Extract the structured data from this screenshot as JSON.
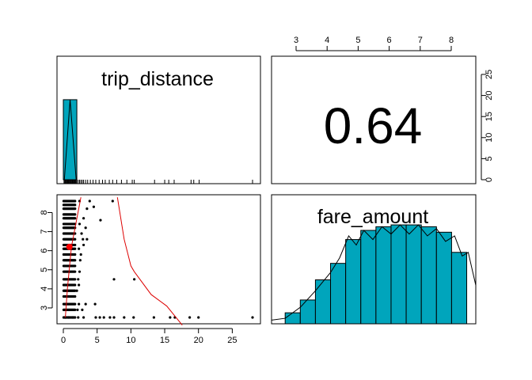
{
  "colors": {
    "bar_fill": "#00A5BC",
    "points": "#000000",
    "loess": "#DD0000",
    "mean_point": "#FF0000",
    "density": "#000000"
  },
  "chart_data": {
    "type": "scatter-matrix",
    "variables": [
      "trip_distance",
      "fare_amount"
    ],
    "correlation": {
      "label": "0.64",
      "value": 0.64
    },
    "axes": {
      "trip_distance_ticks": [
        "0",
        "5",
        "10",
        "15",
        "20",
        "25"
      ],
      "fare_amount_ticks": [
        "3",
        "4",
        "5",
        "6",
        "7",
        "8"
      ],
      "histogram_count_ticks": [
        "0",
        "5",
        "10",
        "15",
        "20",
        "25"
      ],
      "trip_distance_range": [
        0,
        28
      ],
      "fare_amount_range": [
        2.5,
        8.8
      ]
    },
    "trip_distance_histogram": {
      "bins": [
        [
          0,
          2,
          19
        ]
      ],
      "density_peak_x": 1.0,
      "rug": [
        0.1,
        0.2,
        0.3,
        0.4,
        0.5,
        0.6,
        0.7,
        0.8,
        0.9,
        1.0,
        1.1,
        1.2,
        1.3,
        1.4,
        1.5,
        1.6,
        1.7,
        1.8,
        1.9,
        2.0,
        2.2,
        2.4,
        2.6,
        2.8,
        3.0,
        3.3,
        3.6,
        4.0,
        4.4,
        4.8,
        5.3,
        5.8,
        6.2,
        6.8,
        7.3,
        7.9,
        8.6,
        9.4,
        10.2,
        10.5,
        13.5,
        15.0,
        15.6,
        16.4,
        18.9,
        19.3,
        20.1,
        28.0
      ],
      "count_ylim": [
        0,
        28
      ]
    },
    "fare_amount_histogram": {
      "bins": [
        [
          2.5,
          3.0,
          0.6
        ],
        [
          3.0,
          3.5,
          1.3
        ],
        [
          3.5,
          4.0,
          2.4
        ],
        [
          4.0,
          4.5,
          3.3
        ],
        [
          4.5,
          5.0,
          4.6
        ],
        [
          5.0,
          5.5,
          5.1
        ],
        [
          5.5,
          6.0,
          5.3
        ],
        [
          6.0,
          6.5,
          5.4
        ],
        [
          6.5,
          7.0,
          5.4
        ],
        [
          7.0,
          7.5,
          5.3
        ],
        [
          7.5,
          8.0,
          5.0
        ],
        [
          8.0,
          8.5,
          3.9
        ]
      ],
      "density": [
        [
          2.05,
          0.2
        ],
        [
          2.5,
          0.3
        ],
        [
          3.0,
          0.9
        ],
        [
          3.5,
          1.8
        ],
        [
          4.0,
          2.8
        ],
        [
          4.3,
          3.6
        ],
        [
          4.6,
          4.8
        ],
        [
          4.85,
          4.3
        ],
        [
          5.1,
          5.1
        ],
        [
          5.4,
          4.6
        ],
        [
          5.7,
          5.3
        ],
        [
          6.0,
          4.9
        ],
        [
          6.3,
          5.4
        ],
        [
          6.6,
          4.9
        ],
        [
          6.9,
          5.4
        ],
        [
          7.2,
          4.8
        ],
        [
          7.5,
          5.2
        ],
        [
          7.8,
          4.5
        ],
        [
          8.1,
          4.8
        ],
        [
          8.35,
          3.7
        ],
        [
          8.55,
          3.9
        ],
        [
          8.8,
          2.1
        ]
      ],
      "ylim": [
        0,
        6
      ]
    },
    "scatter": {
      "xlabel": "",
      "ylabel": "",
      "y_levels": [
        2.5,
        2.9,
        3.2,
        3.6,
        3.9,
        4.2,
        4.5,
        4.9,
        5.2,
        5.5,
        5.8,
        6.1,
        6.3,
        6.6,
        6.9,
        7.2,
        7.4,
        7.7,
        7.9,
        8.2,
        8.4,
        8.6
      ],
      "extra_points": [
        [
          0.3,
          2.5
        ],
        [
          0.8,
          2.5
        ],
        [
          1.4,
          2.5
        ],
        [
          2.2,
          2.5
        ],
        [
          3.0,
          2.5
        ],
        [
          4.8,
          2.5
        ],
        [
          5.4,
          2.5
        ],
        [
          6.0,
          2.5
        ],
        [
          6.9,
          2.5
        ],
        [
          7.5,
          2.5
        ],
        [
          9.0,
          2.5
        ],
        [
          10.4,
          2.5
        ],
        [
          13.4,
          2.5
        ],
        [
          15.8,
          2.5
        ],
        [
          16.5,
          2.5
        ],
        [
          18.7,
          2.5
        ],
        [
          20.0,
          2.5
        ],
        [
          28.0,
          2.5
        ],
        [
          2.1,
          2.9
        ],
        [
          2.8,
          2.9
        ],
        [
          2.3,
          3.2
        ],
        [
          3.3,
          3.2
        ],
        [
          4.7,
          3.2
        ],
        [
          2.0,
          3.9
        ],
        [
          2.3,
          4.2
        ],
        [
          2.2,
          4.5
        ],
        [
          7.5,
          4.5
        ],
        [
          10.5,
          4.5
        ],
        [
          2.4,
          4.9
        ],
        [
          2.5,
          5.5
        ],
        [
          2.6,
          5.8
        ],
        [
          2.3,
          6.1
        ],
        [
          3.0,
          6.3
        ],
        [
          2.9,
          6.6
        ],
        [
          3.5,
          6.6
        ],
        [
          2.7,
          6.9
        ],
        [
          3.3,
          7.2
        ],
        [
          2.4,
          7.4
        ],
        [
          3.0,
          7.7
        ],
        [
          5.5,
          7.6
        ],
        [
          3.5,
          8.2
        ],
        [
          4.5,
          8.3
        ],
        [
          2.4,
          8.6
        ],
        [
          3.9,
          8.6
        ],
        [
          7.3,
          8.6
        ]
      ],
      "mean_point": [
        0.9,
        6.2
      ],
      "loess_a": [
        [
          0.3,
          2.5
        ],
        [
          0.6,
          4.0
        ],
        [
          1.2,
          6.2
        ],
        [
          2.6,
          8.8
        ]
      ],
      "loess_b": [
        [
          8.0,
          8.8
        ],
        [
          9.0,
          6.6
        ],
        [
          10.0,
          5.2
        ],
        [
          10.5,
          4.9
        ],
        [
          13.0,
          3.7
        ],
        [
          15.3,
          3.1
        ],
        [
          17.6,
          2.1
        ]
      ]
    }
  }
}
